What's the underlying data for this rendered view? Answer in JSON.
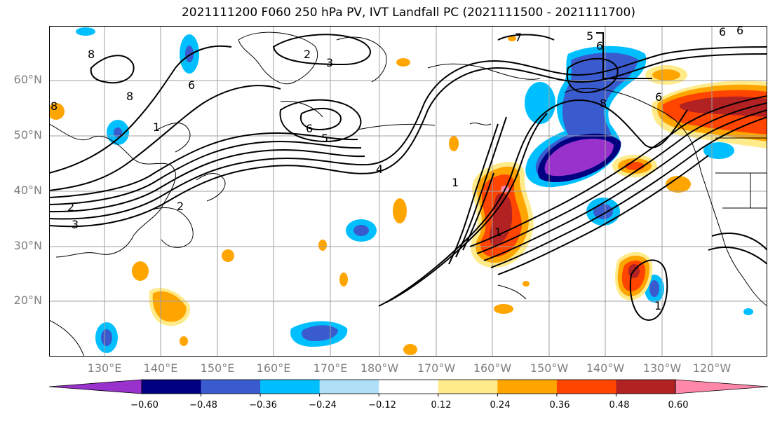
{
  "title": "2021111200 F060 250 hPa PV, IVT Landfall PC (2021111500 - 2021111700)",
  "lat_labels": [
    "60°N",
    "50°N",
    "40°N",
    "30°N",
    "20°N"
  ],
  "lon_labels": [
    "130°E",
    "140°E",
    "150°E",
    "160°E",
    "170°E",
    "180°W",
    "170°W",
    "160°W",
    "150°W",
    "140°W",
    "130°W",
    "120°W"
  ],
  "contour_labels": [
    "8",
    "2",
    "3",
    "7",
    "5",
    "6",
    "8",
    "6",
    "6",
    "6",
    "5",
    "1",
    "4",
    "8",
    "2",
    "3",
    "2",
    "1",
    "1",
    "1",
    "6",
    "8",
    "6"
  ],
  "colorbar": {
    "tick_labels": [
      "−0.60",
      "−0.48",
      "−0.36",
      "−0.24",
      "−0.12",
      "0.12",
      "0.24",
      "0.36",
      "0.48",
      "0.60"
    ],
    "colors": [
      "#9932CC",
      "#000080",
      "#3A5BCE",
      "#00BFFF",
      "#B0E0F8",
      "#FFFFFF",
      "#FFEB8A",
      "#FFA500",
      "#FF4500",
      "#B22222",
      "#FF88AA"
    ]
  }
}
